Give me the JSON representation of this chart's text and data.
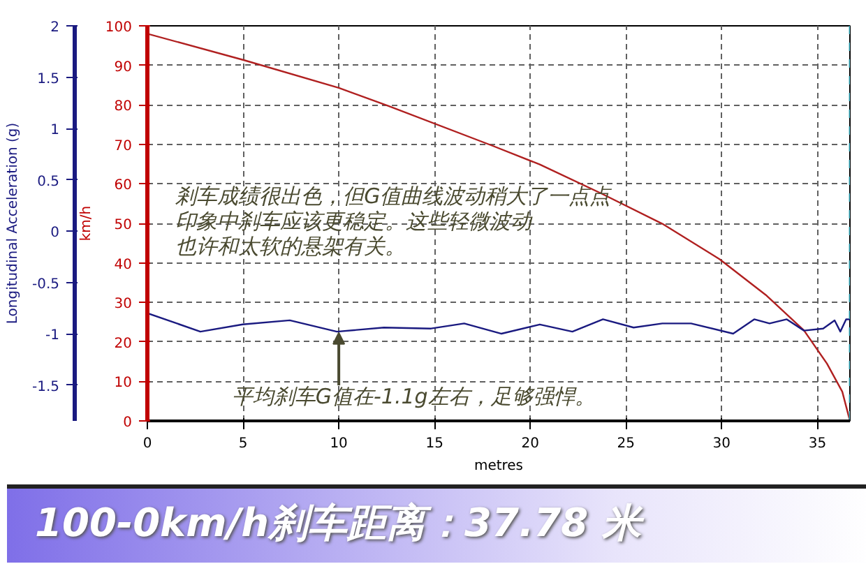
{
  "chart_data": {
    "type": "line",
    "xlabel": "metres",
    "ylabel": "km/h",
    "y2label": "Longitudinal Acceleration (g)",
    "xlim": [
      0,
      36.7
    ],
    "xticks": [
      0,
      5,
      10,
      15,
      20,
      25,
      30,
      35
    ],
    "ylim": [
      0,
      100
    ],
    "yticks": [
      0,
      10,
      20,
      30,
      40,
      50,
      60,
      70,
      80,
      90,
      100
    ],
    "y2lim": [
      -1.85,
      2
    ],
    "y2ticks": [
      -1.5,
      -1,
      -0.5,
      0,
      0.5,
      1,
      1.5,
      2
    ],
    "grid": true,
    "marker": "none",
    "line_style": "solid",
    "series": [
      {
        "color": "#b02020",
        "x": [
          0,
          5.06,
          10.0,
          12.6,
          18.0,
          20.5,
          23.7,
          26.9,
          29.9,
          32.3,
          34.3,
          35.5,
          36.3,
          36.7
        ],
        "values": [
          98,
          91.3,
          84.3,
          79.7,
          69.7,
          64.9,
          57.6,
          49.9,
          40.9,
          31.9,
          22.9,
          14.5,
          7.4,
          0
        ]
      },
      {
        "color": "#1a1a80",
        "axis": "y2",
        "x": [
          0,
          2.77,
          4.98,
          7.44,
          9.9,
          12.36,
          14.82,
          16.55,
          18.5,
          20.5,
          22.2,
          23.8,
          25.4,
          26.9,
          28.4,
          30.6,
          31.7,
          32.5,
          33.4,
          34.3,
          35.3,
          35.9,
          36.2,
          36.5,
          36.7
        ],
        "values": [
          -0.8,
          -0.98,
          -0.91,
          -0.87,
          -0.98,
          -0.94,
          -0.95,
          -0.9,
          -1.0,
          -0.91,
          -0.98,
          -0.86,
          -0.94,
          -0.9,
          -0.9,
          -1.0,
          -0.86,
          -0.9,
          -0.86,
          -0.97,
          -0.95,
          -0.87,
          -0.98,
          -0.86,
          -0.86
        ]
      }
    ],
    "ref_lines": [
      {
        "axis": "x",
        "value": 36.7,
        "color": "#40b0c0",
        "line_style": "dashed"
      }
    ],
    "annotations": [
      "剎车成绩很出色，但G值曲线波动稍大了一点点，",
      "印象中刹车应该更稳定。这些轻微波动",
      "也许和太软的悬架有关。",
      {
        "text": "平均刹车G值在-1.1g左右，足够强悍。",
        "x": 10,
        "y": 22.3
      },
      "100-0km/h刹车距离：37.78 米"
    ]
  }
}
